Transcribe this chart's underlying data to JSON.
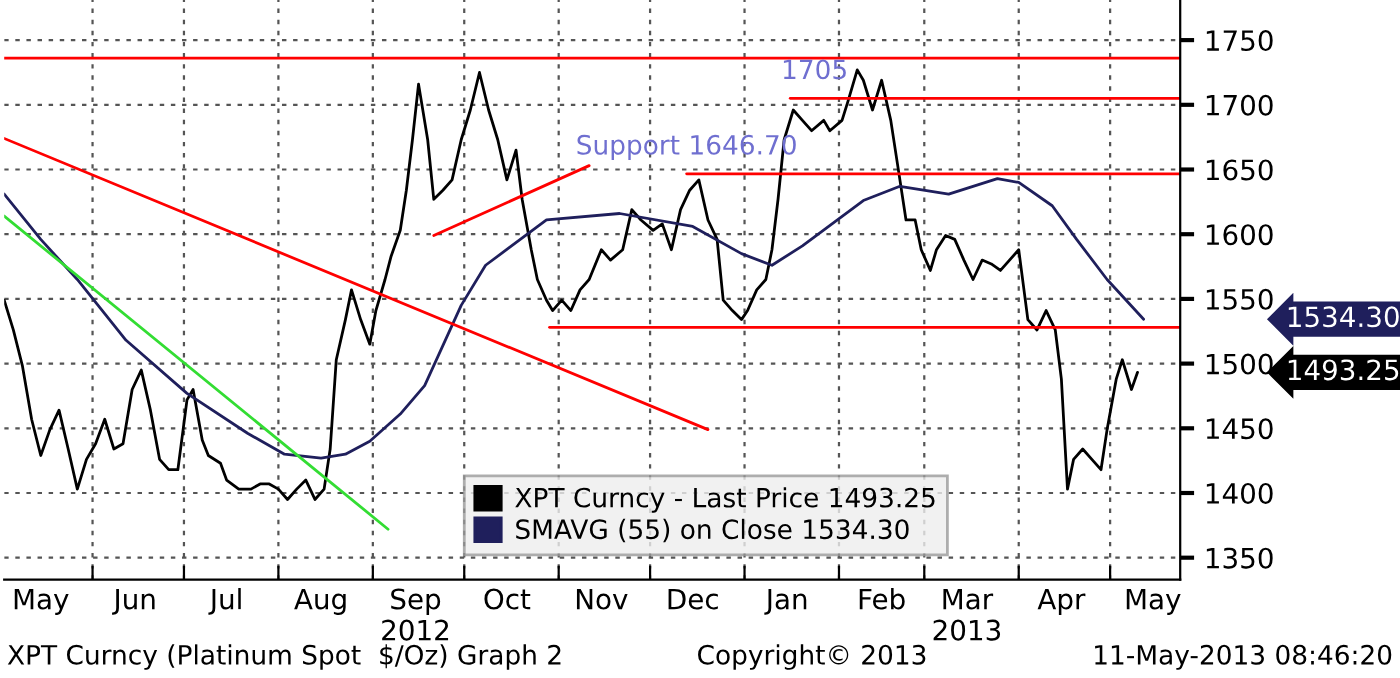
{
  "chart_data": {
    "type": "line",
    "xlim": [
      "2012-05-03",
      "2013-05-24"
    ],
    "ylim": [
      1333,
      1781
    ],
    "yticks": [
      1350,
      1400,
      1450,
      1500,
      1550,
      1600,
      1650,
      1700,
      1750
    ],
    "xticks": [
      {
        "value": "2012-06-01",
        "label": null
      },
      {
        "value": "2012-07-01",
        "label": null
      },
      {
        "value": "2012-08-01",
        "label": null
      },
      {
        "value": "2012-09-01",
        "label": null
      },
      {
        "value": "2012-10-01",
        "label": null
      },
      {
        "value": "2012-11-01",
        "label": null
      },
      {
        "value": "2012-12-01",
        "label": null
      },
      {
        "value": "2013-01-01",
        "label": null
      },
      {
        "value": "2013-02-01",
        "label": null
      },
      {
        "value": "2013-03-01",
        "label": null
      },
      {
        "value": "2013-04-01",
        "label": null
      },
      {
        "value": "2013-05-01",
        "label": null
      },
      {
        "value": "2012-05-15",
        "label": "May"
      },
      {
        "value": "2012-06-15",
        "label": "Jun"
      },
      {
        "value": "2012-07-15",
        "label": "Jul"
      },
      {
        "value": "2012-08-15",
        "label": "Aug"
      },
      {
        "value": "2012-09-15",
        "label": "Sep\n2012"
      },
      {
        "value": "2012-10-15",
        "label": "Oct"
      },
      {
        "value": "2012-11-15",
        "label": "Nov"
      },
      {
        "value": "2012-12-15",
        "label": "Dec"
      },
      {
        "value": "2013-01-15",
        "label": "Jan"
      },
      {
        "value": "2013-02-15",
        "label": "Feb"
      },
      {
        "value": "2013-03-15",
        "label": "Mar\n2013"
      },
      {
        "value": "2013-04-15",
        "label": "Apr"
      },
      {
        "value": "2013-05-15",
        "label": "May"
      }
    ],
    "grid": true,
    "legend": "bottom",
    "series": [
      {
        "name": "XPT Curncy - Last Price 1493.25",
        "color": "#000000",
        "x": [
          "2012-05-03",
          "2012-05-06",
          "2012-05-09",
          "2012-05-12",
          "2012-05-15",
          "2012-05-18",
          "2012-05-21",
          "2012-05-24",
          "2012-05-27",
          "2012-05-30",
          "2012-06-02",
          "2012-06-05",
          "2012-06-08",
          "2012-06-11",
          "2012-06-14",
          "2012-06-17",
          "2012-06-20",
          "2012-06-23",
          "2012-06-26",
          "2012-06-29",
          "2012-07-02",
          "2012-07-04",
          "2012-07-07",
          "2012-07-09",
          "2012-07-13",
          "2012-07-15",
          "2012-07-19",
          "2012-07-23",
          "2012-07-26",
          "2012-07-29",
          "2012-08-01",
          "2012-08-04",
          "2012-08-07",
          "2012-08-10",
          "2012-08-13",
          "2012-08-16",
          "2012-08-18",
          "2012-08-20",
          "2012-08-23",
          "2012-08-25",
          "2012-08-28",
          "2012-08-31",
          "2012-09-02",
          "2012-09-05",
          "2012-09-07",
          "2012-09-10",
          "2012-09-12",
          "2012-09-14",
          "2012-09-16",
          "2012-09-19",
          "2012-09-21",
          "2012-09-24",
          "2012-09-27",
          "2012-09-30",
          "2012-10-03",
          "2012-10-06",
          "2012-10-09",
          "2012-10-12",
          "2012-10-15",
          "2012-10-18",
          "2012-10-20",
          "2012-10-23",
          "2012-10-25",
          "2012-10-28",
          "2012-10-30",
          "2012-11-02",
          "2012-11-05",
          "2012-11-08",
          "2012-11-11",
          "2012-11-15",
          "2012-11-18",
          "2012-11-22",
          "2012-11-25",
          "2012-11-28",
          "2012-12-02",
          "2012-12-05",
          "2012-12-08",
          "2012-12-11",
          "2012-12-14",
          "2012-12-17",
          "2012-12-20",
          "2012-12-23",
          "2012-12-25",
          "2012-12-28",
          "2012-12-31",
          "2013-01-02",
          "2013-01-05",
          "2013-01-08",
          "2013-01-10",
          "2013-01-12",
          "2013-01-14",
          "2013-01-17",
          "2013-01-20",
          "2013-01-23",
          "2013-01-27",
          "2013-01-29",
          "2013-02-02",
          "2013-02-04",
          "2013-02-07",
          "2013-02-09",
          "2013-02-12",
          "2013-02-15",
          "2013-02-18",
          "2013-02-21",
          "2013-02-23",
          "2013-02-26",
          "2013-02-28",
          "2013-03-03",
          "2013-03-05",
          "2013-03-08",
          "2013-03-11",
          "2013-03-14",
          "2013-03-17",
          "2013-03-20",
          "2013-03-23",
          "2013-03-26",
          "2013-04-01",
          "2013-04-04",
          "2013-04-07",
          "2013-04-10",
          "2013-04-13",
          "2013-04-15",
          "2013-04-17",
          "2013-04-19",
          "2013-04-22",
          "2013-04-25",
          "2013-04-28",
          "2013-04-30",
          "2013-05-03",
          "2013-05-05",
          "2013-05-08",
          "2013-05-10"
        ],
        "values": [
          1549,
          1526,
          1498,
          1457,
          1429,
          1449,
          1464,
          1434,
          1403,
          1426,
          1438,
          1457,
          1434,
          1438,
          1480,
          1495,
          1464,
          1426,
          1418,
          1418,
          1472,
          1480,
          1441,
          1429,
          1423,
          1410,
          1403,
          1403,
          1407,
          1407,
          1403,
          1395,
          1403,
          1410,
          1395,
          1403,
          1434,
          1503,
          1534,
          1557,
          1534,
          1515,
          1541,
          1565,
          1583,
          1603,
          1634,
          1673,
          1716,
          1673,
          1627,
          1634,
          1642,
          1673,
          1696,
          1725,
          1696,
          1673,
          1642,
          1665,
          1627,
          1588,
          1565,
          1549,
          1541,
          1549,
          1541,
          1557,
          1565,
          1588,
          1580,
          1588,
          1619,
          1611,
          1603,
          1608,
          1588,
          1619,
          1634,
          1642,
          1611,
          1596,
          1549,
          1541,
          1534,
          1541,
          1557,
          1565,
          1588,
          1627,
          1673,
          1696,
          1688,
          1680,
          1688,
          1680,
          1688,
          1703,
          1727,
          1719,
          1696,
          1719,
          1688,
          1642,
          1611,
          1611,
          1588,
          1572,
          1588,
          1599,
          1596,
          1580,
          1565,
          1580,
          1577,
          1572,
          1588,
          1534,
          1526,
          1541,
          1526,
          1488,
          1403,
          1426,
          1434,
          1426,
          1418,
          1449,
          1488,
          1503,
          1480,
          1493.25
        ]
      },
      {
        "name": "SMAVG (55) on Close 1534.30",
        "color": "#1f1f5c",
        "x": [
          "2012-05-03",
          "2012-05-15",
          "2012-05-27",
          "2012-06-12",
          "2012-07-02",
          "2012-07-22",
          "2012-08-03",
          "2012-08-15",
          "2012-08-23",
          "2012-08-31",
          "2012-09-10",
          "2012-09-18",
          "2012-09-30",
          "2012-10-08",
          "2012-10-28",
          "2012-11-21",
          "2012-12-15",
          "2012-12-31",
          "2013-01-10",
          "2013-01-20",
          "2013-02-09",
          "2013-02-21",
          "2013-03-09",
          "2013-03-25",
          "2013-04-01",
          "2013-04-12",
          "2013-04-20",
          "2013-04-30",
          "2013-05-12"
        ],
        "values": [
          1631,
          1596,
          1565,
          1518,
          1477,
          1446,
          1430,
          1427,
          1430,
          1440,
          1461,
          1483,
          1545,
          1576,
          1611,
          1616,
          1606,
          1585,
          1576,
          1591,
          1626,
          1637,
          1631,
          1643,
          1640,
          1622,
          1596,
          1565,
          1534.3
        ]
      },
      {
        "color": "#ff0000",
        "x": [
          "2012-05-03",
          "2013-05-24"
        ],
        "values": [
          1736,
          1736
        ]
      },
      {
        "color": "#ff0000",
        "x": [
          "2013-01-16",
          "2013-05-24"
        ],
        "values": [
          1705,
          1705
        ]
      },
      {
        "color": "#ff0000",
        "x": [
          "2012-12-13",
          "2013-05-24"
        ],
        "values": [
          1646.7,
          1646.7
        ]
      },
      {
        "color": "#ff0000",
        "x": [
          "2012-10-29",
          "2013-05-24"
        ],
        "values": [
          1528,
          1528
        ]
      },
      {
        "color": "#ff0000",
        "x": [
          "2012-05-03",
          "2012-12-20"
        ],
        "values": [
          1674,
          1449
        ]
      },
      {
        "color": "#33dd33",
        "x": [
          "2012-05-03",
          "2012-09-06"
        ],
        "values": [
          1614,
          1372
        ]
      },
      {
        "color": "#ff0000",
        "x": [
          "2012-09-21",
          "2012-11-11"
        ],
        "values": [
          1599,
          1653
        ]
      }
    ],
    "annotations": [
      {
        "text": "1705",
        "x": "2013-01-24",
        "y": 1705
      },
      {
        "text": "Support 1646.70",
        "x": "2012-12-13",
        "y": 1646.7
      },
      "1493.25",
      "1534.30",
      "XPT Curncy (Platinum Spot  $/Oz) Graph 2",
      "Copyright© 2013",
      "11-May-2013 08:46:20"
    ]
  }
}
